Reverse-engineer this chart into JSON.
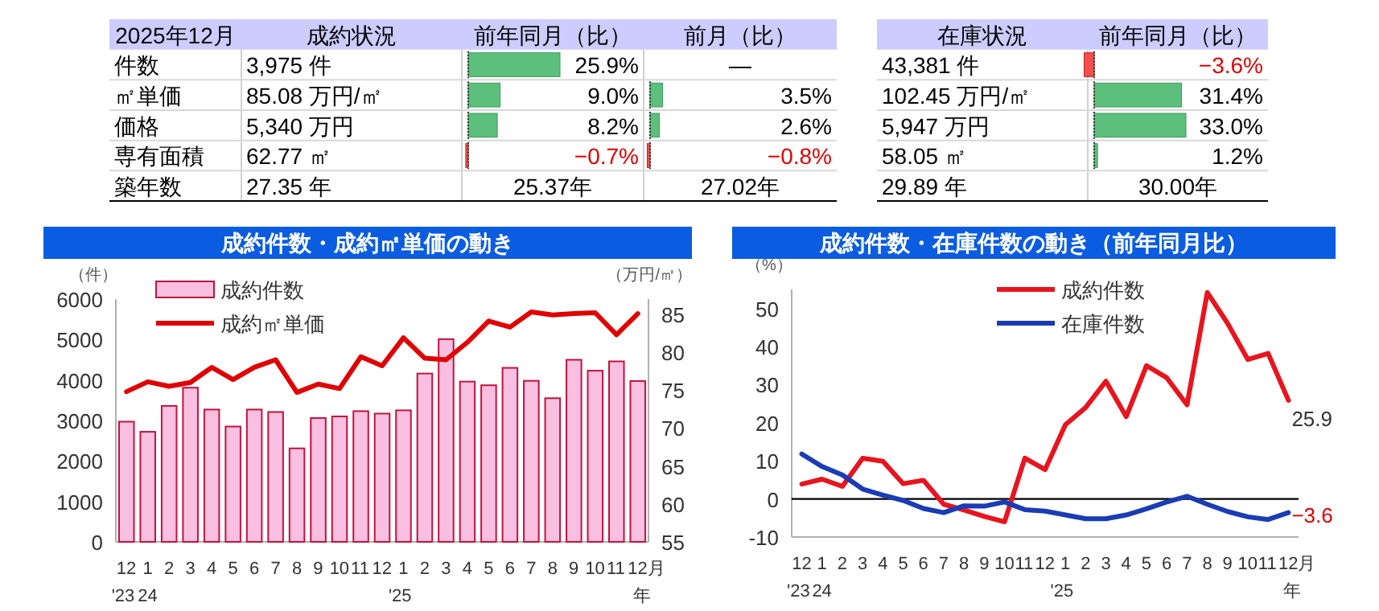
{
  "chart_data": [
    {
      "type": "other",
      "categories": [
        "2025年12月",
        "成約状況",
        "前年同月（比）",
        "前月（比）"
      ],
      "annotations": [
        "件数",
        "3,975 件",
        "25.9%",
        "—",
        "㎡単価",
        "85.08 万円/㎡",
        "9.0%",
        "3.5%",
        "価格",
        "5,340 万円",
        "8.2%",
        "2.6%",
        "専有面積",
        "62.77 ㎡",
        "−0.7%",
        "−0.8%",
        "築年数",
        "27.35 年",
        "25.37年",
        "27.02年"
      ]
    },
    {
      "type": "other",
      "categories": [
        "在庫状況",
        "前年同月（比）"
      ],
      "annotations": [
        "43,381 件",
        "−3.6%",
        "102.45 万円/㎡",
        "31.4%",
        "5,947 万円",
        "33.0%",
        "58.05 ㎡",
        "1.2%",
        "29.89 年",
        "30.00年"
      ]
    },
    {
      "type": "bar",
      "title": "成約件数・成約㎡単価の動き",
      "ylabel": "（件）",
      "y2label": "（万円/㎡）",
      "categories": [
        "12\n'23",
        "1\n24",
        "2",
        "3",
        "4",
        "5",
        "6",
        "7",
        "8",
        "9",
        "10",
        "11",
        "12",
        "1\n'25",
        "2",
        "3",
        "4",
        "5",
        "6",
        "7",
        "8",
        "9",
        "10",
        "11",
        "12月年"
      ],
      "ylim": [
        0,
        6000
      ],
      "yticks": [
        0,
        1000,
        2000,
        3000,
        4000,
        5000,
        6000
      ],
      "y2lim": [
        55,
        87
      ],
      "y2ticks": [
        55,
        60,
        65,
        70,
        75,
        80,
        85
      ],
      "legend": "top left",
      "series": [
        {
          "name": "成約件数",
          "type": "bar",
          "color": "#f9bfe0",
          "values": [
            2970,
            2720,
            3360,
            3810,
            3270,
            2850,
            3270,
            3210,
            2310,
            3060,
            3100,
            3230,
            3170,
            3250,
            4160,
            5010,
            3960,
            3870,
            4300,
            3980,
            3550,
            4500,
            4230,
            4460,
            3975
          ]
        },
        {
          "name": "成約㎡単価",
          "type": "line",
          "axis": "y2",
          "color": "#e00000",
          "values": [
            74.8,
            76.1,
            75.5,
            76.0,
            78.0,
            76.4,
            78.0,
            79.0,
            74.7,
            75.8,
            75.2,
            79.4,
            78.2,
            81.9,
            79.2,
            79.0,
            81.3,
            84.1,
            83.3,
            85.3,
            84.9,
            85.1,
            85.2,
            82.3,
            85.08
          ]
        }
      ]
    },
    {
      "type": "line",
      "title": "成約件数・在庫件数の動き（前年同月比）",
      "ylabel": "（%）",
      "categories": [
        "12\n'23",
        "1\n24",
        "2",
        "3",
        "4",
        "5",
        "6",
        "7",
        "8",
        "9",
        "10",
        "11",
        "12",
        "1\n'25",
        "2",
        "3",
        "4",
        "5",
        "6",
        "7",
        "8",
        "9",
        "10",
        "11",
        "12月年"
      ],
      "ylim": [
        -10,
        55
      ],
      "yticks": [
        -10,
        0,
        10,
        20,
        30,
        40,
        50
      ],
      "legend": "top",
      "ref_lines": [
        {
          "axis": "y",
          "value": 0,
          "color": "#000000"
        }
      ],
      "annotations": [
        {
          "text": "25.9",
          "x": "12月年",
          "y": 25.9
        },
        {
          "text": "−3.6",
          "x": "12月年",
          "y": -3.6
        }
      ],
      "series": [
        {
          "name": "成約件数",
          "color": "#e8141e",
          "values": [
            3.9,
            5.2,
            3.3,
            10.7,
            9.9,
            4.0,
            4.9,
            -1.4,
            -2.9,
            -4.6,
            -6.0,
            10.7,
            7.7,
            19.5,
            24.0,
            30.9,
            21.6,
            35.0,
            31.8,
            24.7,
            54.2,
            46.1,
            36.6,
            38.2,
            25.9
          ]
        },
        {
          "name": "在庫件数",
          "color": "#1a3cb4",
          "values": [
            11.8,
            8.5,
            6.3,
            2.6,
            1.0,
            -0.4,
            -2.5,
            -3.6,
            -1.8,
            -1.9,
            -0.8,
            -2.8,
            -3.2,
            -4.2,
            -5.2,
            -5.2,
            -4.2,
            -2.6,
            -0.8,
            0.7,
            -1.4,
            -3.3,
            -4.7,
            -5.4,
            -3.6
          ]
        }
      ]
    }
  ]
}
